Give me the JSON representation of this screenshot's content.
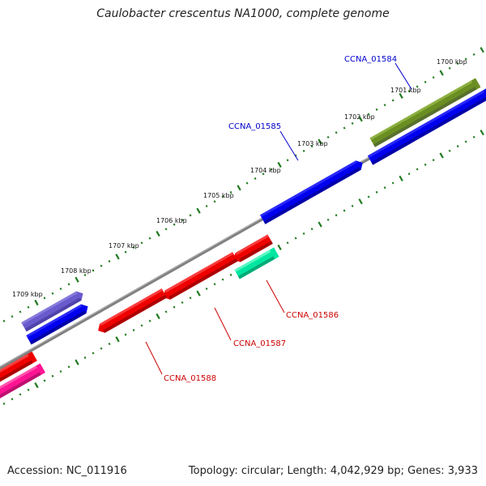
{
  "title": "Caulobacter crescentus NA1000, complete genome",
  "footer": {
    "accession": "Accession: NC_011916",
    "summary": "Topology: circular; Length: 4,042,929 bp; Genes: 3,933"
  },
  "colors": {
    "backbone": "#808080",
    "ticks": "#1f7a1f",
    "forward_label": "#0000cc",
    "reverse_label": "#cc0000"
  },
  "kbp_labels": [
    "1700 kbp",
    "1701 kbp",
    "1702 kbp",
    "1703 kbp",
    "1704 kbp",
    "1705 kbp",
    "1706 kbp",
    "1707 kbp",
    "1708 kbp",
    "1709 kbp"
  ],
  "gene_labels": {
    "CCNA_01584": "CCNA_01584",
    "CCNA_01585": "CCNA_01585",
    "CCNA_01586": "CCNA_01586",
    "CCNA_01587": "CCNA_01587",
    "CCNA_01588": "CCNA_01588"
  }
}
